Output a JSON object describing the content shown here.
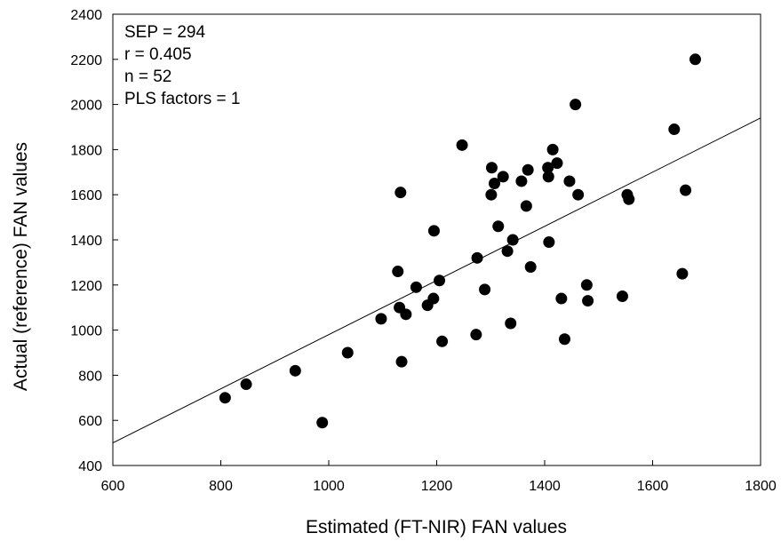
{
  "chart_data": {
    "type": "scatter",
    "title": "",
    "xlabel": "Estimated (FT-NIR) FAN values",
    "ylabel": "Actual (reference) FAN values",
    "xlim": [
      600,
      1800
    ],
    "ylim": [
      400,
      2400
    ],
    "xticks": [
      "600",
      "800",
      "1000",
      "1200",
      "1400",
      "1600",
      "1800"
    ],
    "yticks": [
      "400",
      "600",
      "800",
      "1000",
      "1200",
      "1400",
      "1600",
      "1800",
      "2000",
      "2200",
      "2400"
    ],
    "grid": false,
    "annotations": [
      "SEP = 294",
      "r = 0.405",
      "n = 52",
      "PLS factors = 1"
    ],
    "regression_line": {
      "x": [
        600,
        1800
      ],
      "y": [
        500,
        1940
      ]
    },
    "series": [
      {
        "points": [
          [
            808,
            700
          ],
          [
            847,
            760
          ],
          [
            938,
            820
          ],
          [
            988,
            590
          ],
          [
            1035,
            900
          ],
          [
            1097,
            1050
          ],
          [
            1128,
            1260
          ],
          [
            1131,
            1100
          ],
          [
            1133,
            1610
          ],
          [
            1135,
            860
          ],
          [
            1143,
            1070
          ],
          [
            1162,
            1190
          ],
          [
            1183,
            1110
          ],
          [
            1194,
            1140
          ],
          [
            1195,
            1440
          ],
          [
            1205,
            1220
          ],
          [
            1210,
            950
          ],
          [
            1247,
            1820
          ],
          [
            1273,
            980
          ],
          [
            1275,
            1320
          ],
          [
            1289,
            1180
          ],
          [
            1301,
            1600
          ],
          [
            1302,
            1720
          ],
          [
            1307,
            1650
          ],
          [
            1314,
            1460
          ],
          [
            1323,
            1680
          ],
          [
            1331,
            1350
          ],
          [
            1337,
            1030
          ],
          [
            1341,
            1400
          ],
          [
            1357,
            1660
          ],
          [
            1366,
            1550
          ],
          [
            1369,
            1710
          ],
          [
            1374,
            1280
          ],
          [
            1406,
            1720
          ],
          [
            1407,
            1680
          ],
          [
            1408,
            1390
          ],
          [
            1415,
            1800
          ],
          [
            1423,
            1740
          ],
          [
            1431,
            1140
          ],
          [
            1437,
            960
          ],
          [
            1446,
            1660
          ],
          [
            1457,
            2000
          ],
          [
            1462,
            1600
          ],
          [
            1478,
            1200
          ],
          [
            1480,
            1130
          ],
          [
            1544,
            1150
          ],
          [
            1553,
            1600
          ],
          [
            1556,
            1580
          ],
          [
            1640,
            1890
          ],
          [
            1655,
            1250
          ],
          [
            1661,
            1620
          ],
          [
            1679,
            2200
          ]
        ]
      }
    ]
  }
}
